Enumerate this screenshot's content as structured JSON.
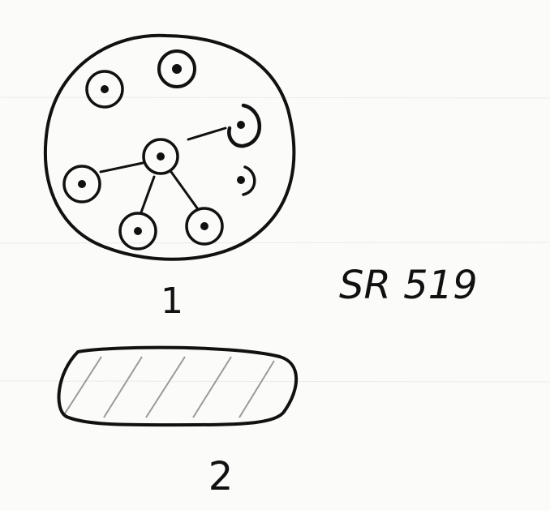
{
  "drawing": {
    "specimen_code": "SR 519",
    "figures": [
      {
        "label": "1"
      },
      {
        "label": "2"
      }
    ]
  }
}
